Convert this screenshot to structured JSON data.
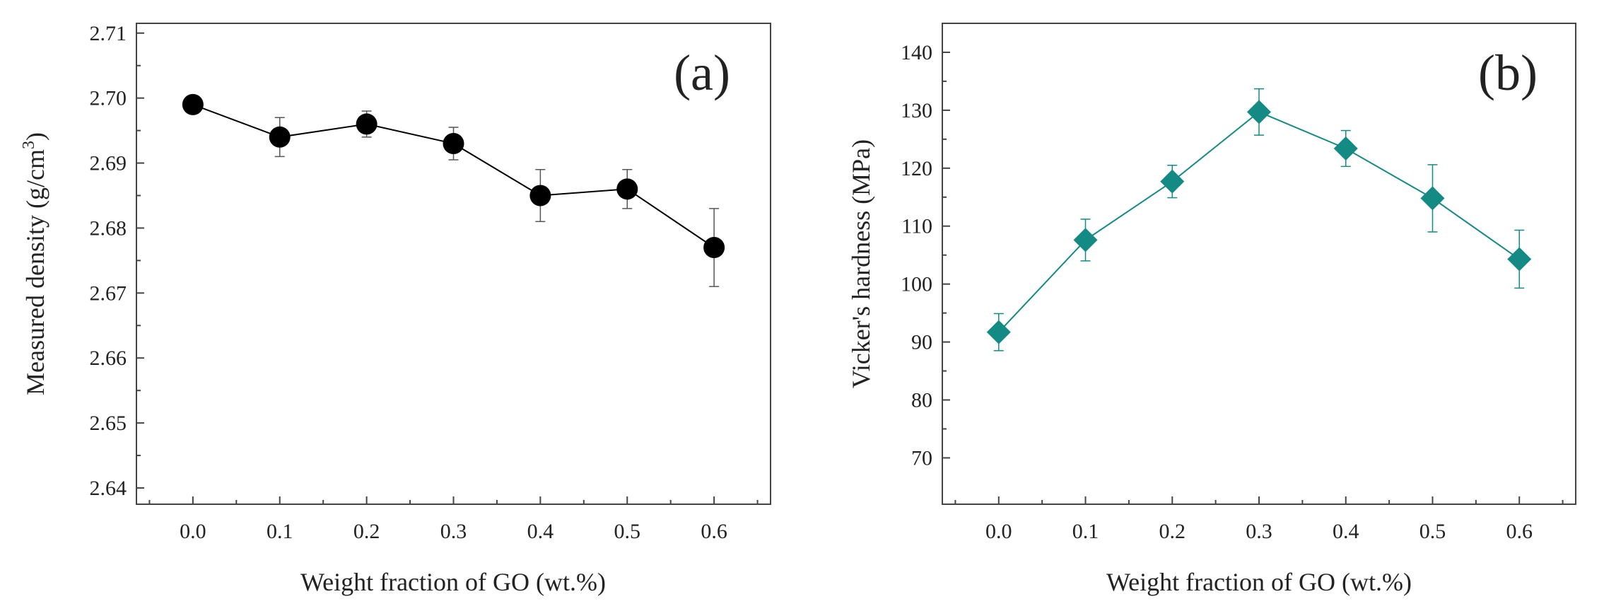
{
  "chart_data": [
    {
      "type": "line",
      "panel_label": "(a)",
      "title": "",
      "xlabel": "Weight fraction of GO (wt.%)",
      "ylabel": "Measured density (g/cm",
      "ylabel_sup": "3",
      "ylabel_close": ")",
      "xlim": [
        -0.065,
        0.665
      ],
      "ylim": [
        2.6375,
        2.7115
      ],
      "x": [
        0.0,
        0.1,
        0.2,
        0.3,
        0.4,
        0.5,
        0.6
      ],
      "x_tick_labels": [
        "0.0",
        "0.1",
        "0.2",
        "0.3",
        "0.4",
        "0.5",
        "0.6"
      ],
      "y_ticks": [
        2.64,
        2.65,
        2.66,
        2.67,
        2.68,
        2.69,
        2.7,
        2.71
      ],
      "y_tick_labels": [
        "2.64",
        "2.65",
        "2.66",
        "2.67",
        "2.68",
        "2.69",
        "2.70",
        "2.71"
      ],
      "series": [
        {
          "name": "Measured density",
          "marker": "circle",
          "color": "#000000",
          "values": [
            2.699,
            2.694,
            2.696,
            2.693,
            2.685,
            2.686,
            2.677
          ],
          "error": [
            0.0005,
            0.003,
            0.002,
            0.0025,
            0.004,
            0.003,
            0.006
          ]
        }
      ]
    },
    {
      "type": "line",
      "panel_label": "(b)",
      "title": "",
      "xlabel": "Weight fraction of GO (wt.%)",
      "ylabel": "Vicker's hardness (MPa)",
      "xlim": [
        -0.065,
        0.665
      ],
      "ylim": [
        62,
        145
      ],
      "x": [
        0.0,
        0.1,
        0.2,
        0.3,
        0.4,
        0.5,
        0.6
      ],
      "x_tick_labels": [
        "0.0",
        "0.1",
        "0.2",
        "0.3",
        "0.4",
        "0.5",
        "0.6"
      ],
      "y_ticks": [
        70,
        80,
        90,
        100,
        110,
        120,
        130,
        140
      ],
      "y_tick_labels": [
        "70",
        "80",
        "90",
        "100",
        "110",
        "120",
        "130",
        "140"
      ],
      "series": [
        {
          "name": "Vicker's hardness",
          "marker": "diamond",
          "color": "#138a84",
          "values": [
            91.7,
            107.6,
            117.7,
            129.7,
            123.4,
            114.8,
            104.3
          ],
          "error": [
            3.2,
            3.6,
            2.8,
            4.0,
            3.1,
            5.8,
            5.0
          ]
        }
      ]
    }
  ]
}
